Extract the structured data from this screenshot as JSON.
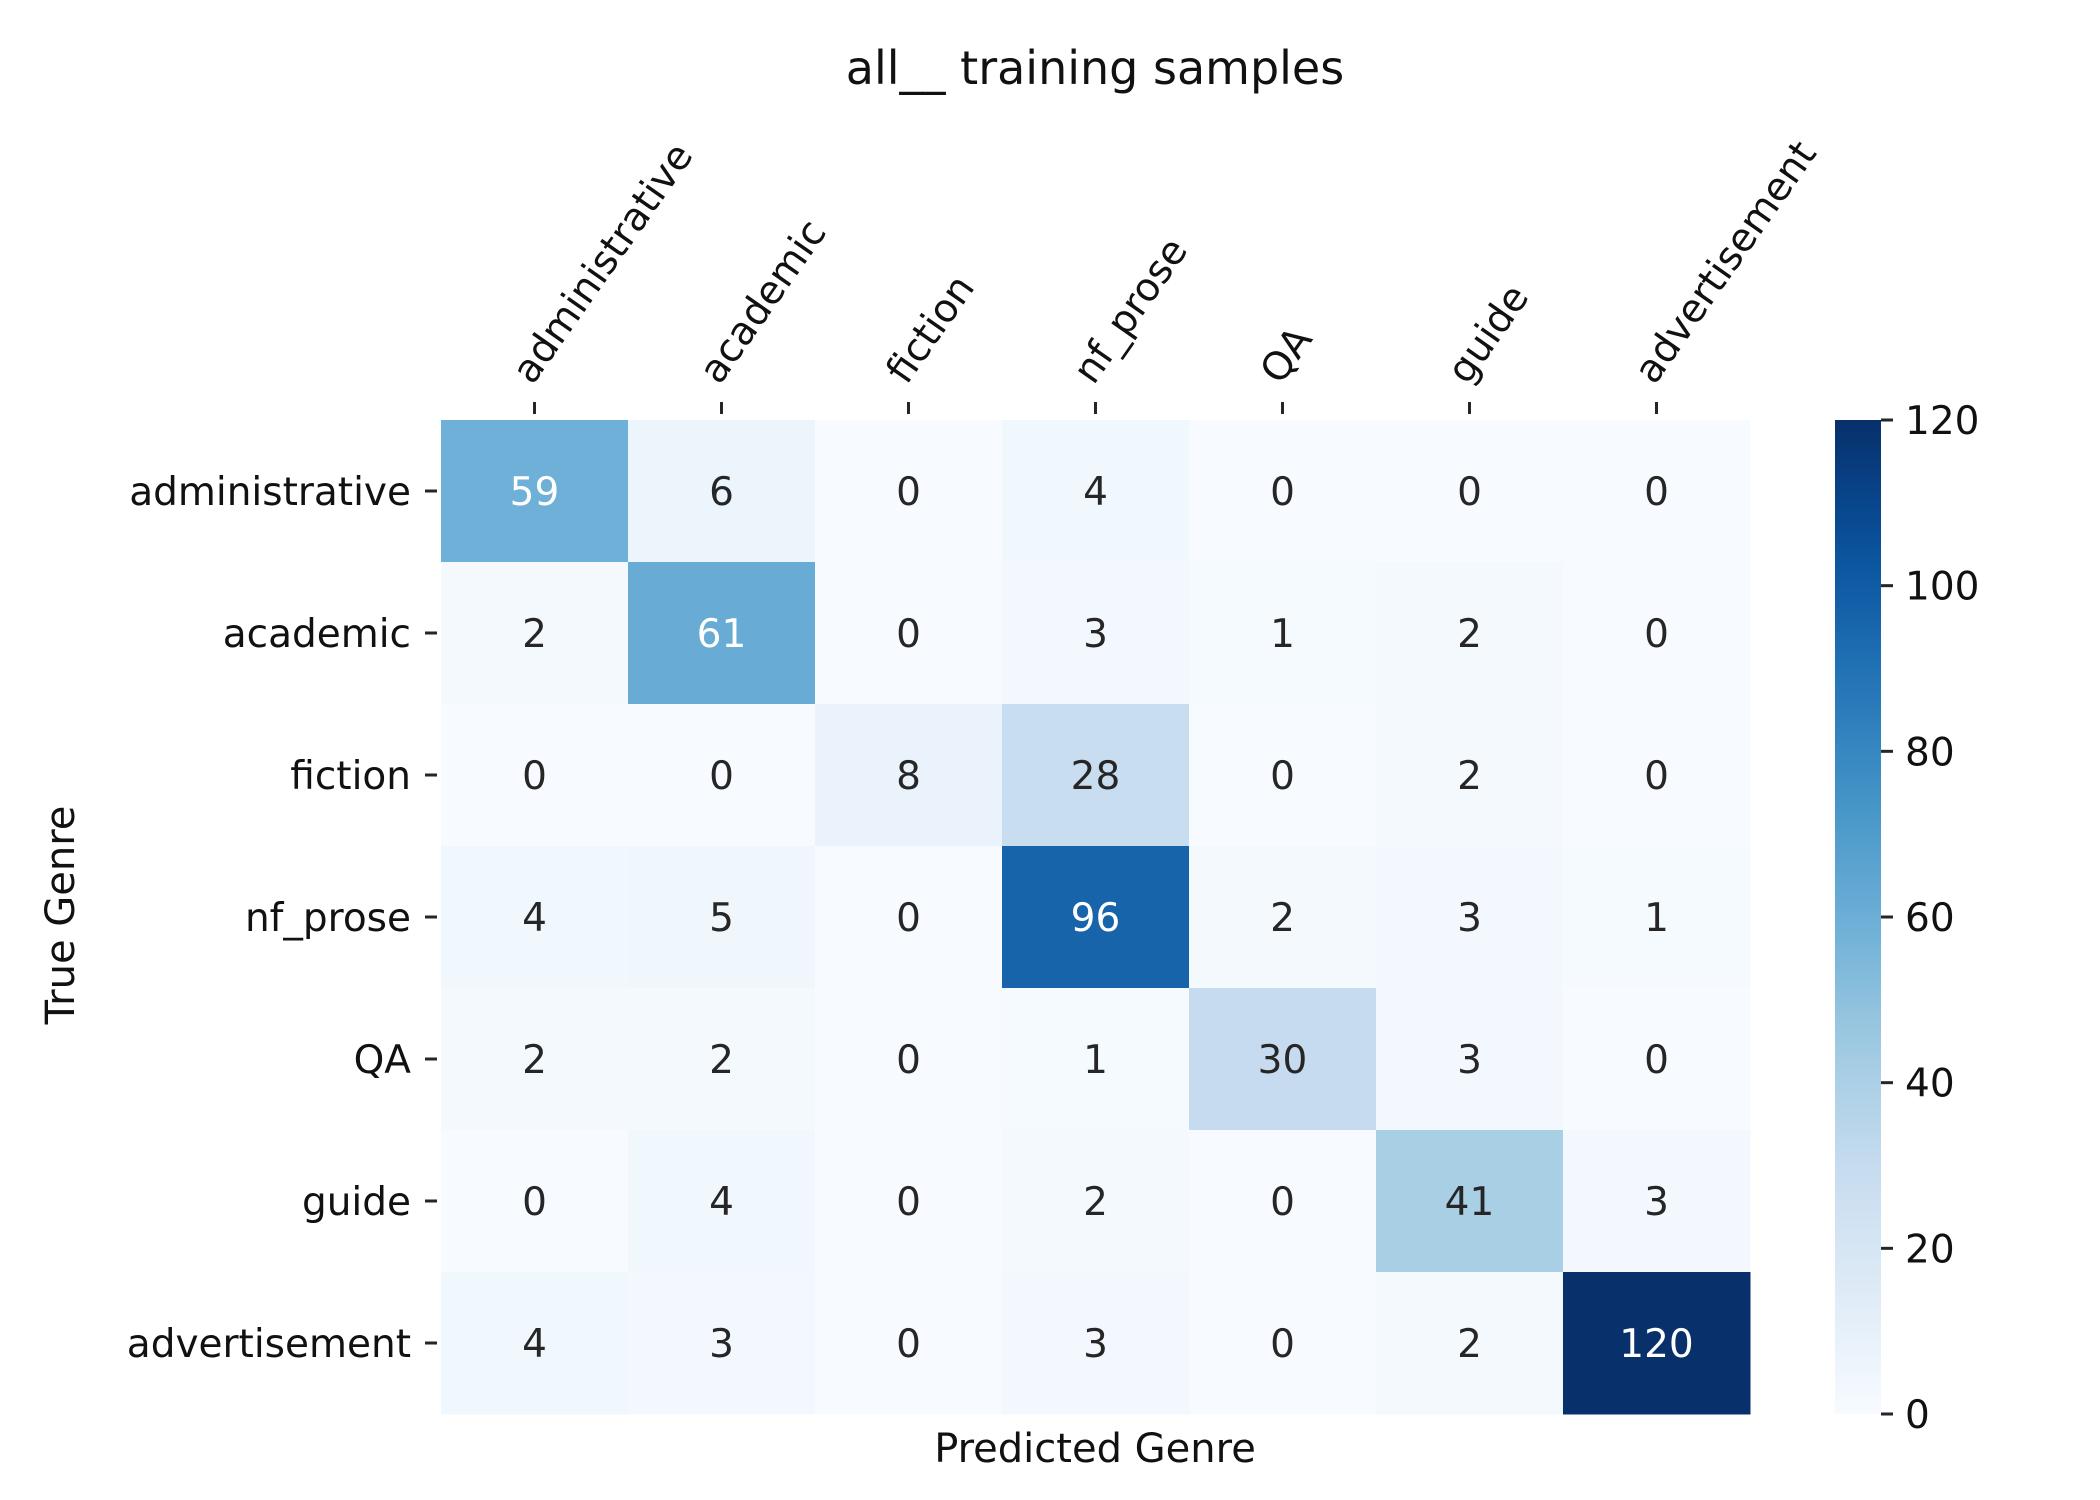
{
  "chart_data": {
    "type": "heatmap",
    "title": "all__ training samples",
    "xlabel": "Predicted Genre",
    "ylabel": "True Genre",
    "x_categories": [
      "administrative",
      "academic",
      "fiction",
      "nf_prose",
      "QA",
      "guide",
      "advertisement"
    ],
    "y_categories": [
      "administrative",
      "academic",
      "fiction",
      "nf_prose",
      "QA",
      "guide",
      "advertisement"
    ],
    "values": [
      [
        59,
        6,
        0,
        4,
        0,
        0,
        0
      ],
      [
        2,
        61,
        0,
        3,
        1,
        2,
        0
      ],
      [
        0,
        0,
        8,
        28,
        0,
        2,
        0
      ],
      [
        4,
        5,
        0,
        96,
        2,
        3,
        1
      ],
      [
        2,
        2,
        0,
        1,
        30,
        3,
        0
      ],
      [
        0,
        4,
        0,
        2,
        0,
        41,
        3
      ],
      [
        4,
        3,
        0,
        3,
        0,
        2,
        120
      ]
    ],
    "colormap": "Blues",
    "color_low": "#f7fbff",
    "color_high": "#08306b",
    "vmin": 0,
    "vmax": 120,
    "colorbar_ticks": [
      0,
      20,
      40,
      60,
      80,
      100,
      120
    ],
    "x_ticks_position": "top",
    "grid": false
  }
}
